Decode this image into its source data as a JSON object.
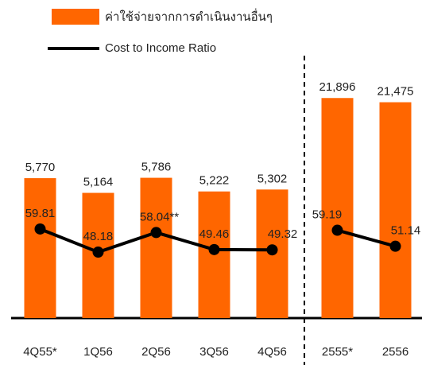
{
  "chart_data": [
    {
      "type": "bar-line",
      "categories": [
        "4Q55*",
        "1Q56",
        "2Q56",
        "3Q56",
        "4Q56"
      ],
      "series": [
        {
          "name": "ค่าใช้จ่ายจากการดำเนินงานอื่นๆ",
          "color": "#ff6600",
          "values": [
            5770,
            5164,
            5786,
            5222,
            5302
          ],
          "value_labels": [
            "5,770",
            "5,164",
            "5,786",
            "5,222",
            "5,302"
          ]
        },
        {
          "name": "Cost to Income Ratio",
          "color": "#000000",
          "axis": "y2",
          "values": [
            59.81,
            48.18,
            58.04,
            49.46,
            49.32
          ],
          "value_labels": [
            "59.81",
            "48.18",
            "58.04**",
            "49.46",
            "49.32"
          ]
        }
      ],
      "ylim": [
        0,
        11150
      ],
      "y2lim": [
        15,
        151
      ]
    },
    {
      "type": "bar-line",
      "categories": [
        "2555*",
        "2556"
      ],
      "series": [
        {
          "color": "#ff6600",
          "values": [
            21896,
            21475
          ],
          "value_labels": [
            "21,896",
            "21,475"
          ]
        },
        {
          "color": "#000000",
          "axis": "y2",
          "values": [
            59.19,
            51.14
          ],
          "value_labels": [
            "59.19",
            "51.14"
          ]
        }
      ],
      "ylim": [
        0,
        26900
      ],
      "y2lim": [
        15,
        151
      ]
    }
  ]
}
